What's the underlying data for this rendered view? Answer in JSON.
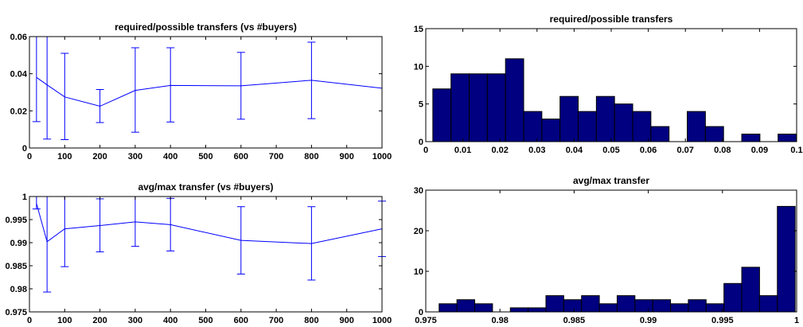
{
  "chart_data": [
    {
      "type": "line",
      "title": "required/possible transfers (vs #buyers)",
      "xlim": [
        0,
        1000
      ],
      "ylim": [
        0,
        0.06
      ],
      "xticks": [
        0,
        100,
        200,
        300,
        400,
        500,
        600,
        700,
        800,
        900,
        1000
      ],
      "xtick_labels": [
        "0",
        "100",
        "200",
        "300",
        "400",
        "500",
        "600",
        "700",
        "800",
        "900",
        "1000"
      ],
      "yticks": [
        0,
        0.02,
        0.04,
        0.06
      ],
      "ytick_labels": [
        "0",
        "0.02",
        "0.04",
        "0.06"
      ],
      "grid": false,
      "color": "#0000ff",
      "series": [
        {
          "x": [
            20,
            50,
            100,
            200,
            300,
            400,
            600,
            800,
            1000
          ],
          "y": [
            0.038,
            0.034,
            0.0275,
            0.0225,
            0.031,
            0.0337,
            0.0335,
            0.0365,
            0.0322
          ],
          "err_low": [
            0.0142,
            0.0048,
            0.0045,
            0.0137,
            0.0085,
            0.014,
            0.0155,
            0.0158,
            null
          ],
          "err_high": [
            0.062,
            0.062,
            0.051,
            0.0315,
            0.054,
            0.054,
            0.0515,
            0.057,
            null
          ]
        }
      ]
    },
    {
      "type": "bar",
      "title": "required/possible transfers",
      "xlim": [
        0,
        0.1
      ],
      "ylim": [
        0,
        15
      ],
      "xticks": [
        0,
        0.01,
        0.02,
        0.03,
        0.04,
        0.05,
        0.06,
        0.07,
        0.08,
        0.09,
        0.1
      ],
      "xtick_labels": [
        "0",
        "0.01",
        "0.02",
        "0.03",
        "0.04",
        "0.05",
        "0.06",
        "0.07",
        "0.08",
        "0.09",
        "0.1"
      ],
      "yticks": [
        0,
        5,
        10,
        15
      ],
      "ytick_labels": [
        "0",
        "5",
        "10",
        "15"
      ],
      "grid": false,
      "color": "#000080",
      "bin_edges": [
        0.0019,
        0.0068,
        0.0117,
        0.0166,
        0.0215,
        0.0264,
        0.0313,
        0.0362,
        0.0411,
        0.046,
        0.0509,
        0.0558,
        0.0607,
        0.0656,
        0.0705,
        0.0754,
        0.0803,
        0.0852,
        0.0901,
        0.095,
        0.0999
      ],
      "values": [
        7,
        9,
        9,
        9,
        11,
        4,
        3,
        6,
        4,
        6,
        5,
        4,
        2,
        0,
        4,
        2,
        0,
        1,
        0,
        1
      ]
    },
    {
      "type": "line",
      "title": "avg/max transfer (vs #buyers)",
      "xlim": [
        0,
        1000
      ],
      "ylim": [
        0.975,
        1
      ],
      "xticks": [
        0,
        100,
        200,
        300,
        400,
        500,
        600,
        700,
        800,
        900,
        1000
      ],
      "xtick_labels": [
        "0",
        "100",
        "200",
        "300",
        "400",
        "500",
        "600",
        "700",
        "800",
        "900",
        "1000"
      ],
      "yticks": [
        0.975,
        0.98,
        0.985,
        0.99,
        0.995,
        1
      ],
      "ytick_labels": [
        "0.975",
        "0.98",
        "0.985",
        "0.99",
        "0.995",
        "1"
      ],
      "grid": false,
      "color": "#0000ff",
      "series": [
        {
          "x": [
            20,
            50,
            100,
            200,
            300,
            400,
            600,
            800,
            1000
          ],
          "y": [
            0.9985,
            0.9902,
            0.993,
            0.9937,
            0.9945,
            0.9939,
            0.9905,
            0.9898,
            0.993
          ],
          "err_low": [
            0.9973,
            0.9793,
            0.9848,
            0.988,
            0.9892,
            0.9882,
            0.9832,
            0.9819,
            0.987
          ],
          "err_high": [
            1.002,
            1.002,
            1.002,
            0.9995,
            1.0,
            0.9996,
            0.9978,
            0.9978,
            0.999
          ]
        }
      ]
    },
    {
      "type": "bar",
      "title": "avg/max transfer",
      "xlim": [
        0.975,
        1
      ],
      "ylim": [
        0,
        30
      ],
      "xticks": [
        0.975,
        0.98,
        0.985,
        0.99,
        0.995,
        1
      ],
      "xtick_labels": [
        "0.975",
        "0.98",
        "0.985",
        "0.99",
        "0.995",
        "1"
      ],
      "yticks": [
        0,
        10,
        20,
        30
      ],
      "ytick_labels": [
        "0",
        "10",
        "20",
        "30"
      ],
      "grid": false,
      "color": "#000080",
      "bin_edges": [
        0.9759,
        0.9771,
        0.9783,
        0.9795,
        0.9807,
        0.9819,
        0.9831,
        0.9843,
        0.9855,
        0.9867,
        0.9879,
        0.9891,
        0.9903,
        0.9915,
        0.9927,
        0.9939,
        0.9951,
        0.9963,
        0.9975,
        0.9987,
        0.9999
      ],
      "values": [
        2,
        3,
        2,
        0,
        1,
        1,
        4,
        3,
        4,
        2,
        4,
        3,
        3,
        2,
        3,
        2,
        7,
        11,
        4,
        26
      ]
    }
  ]
}
